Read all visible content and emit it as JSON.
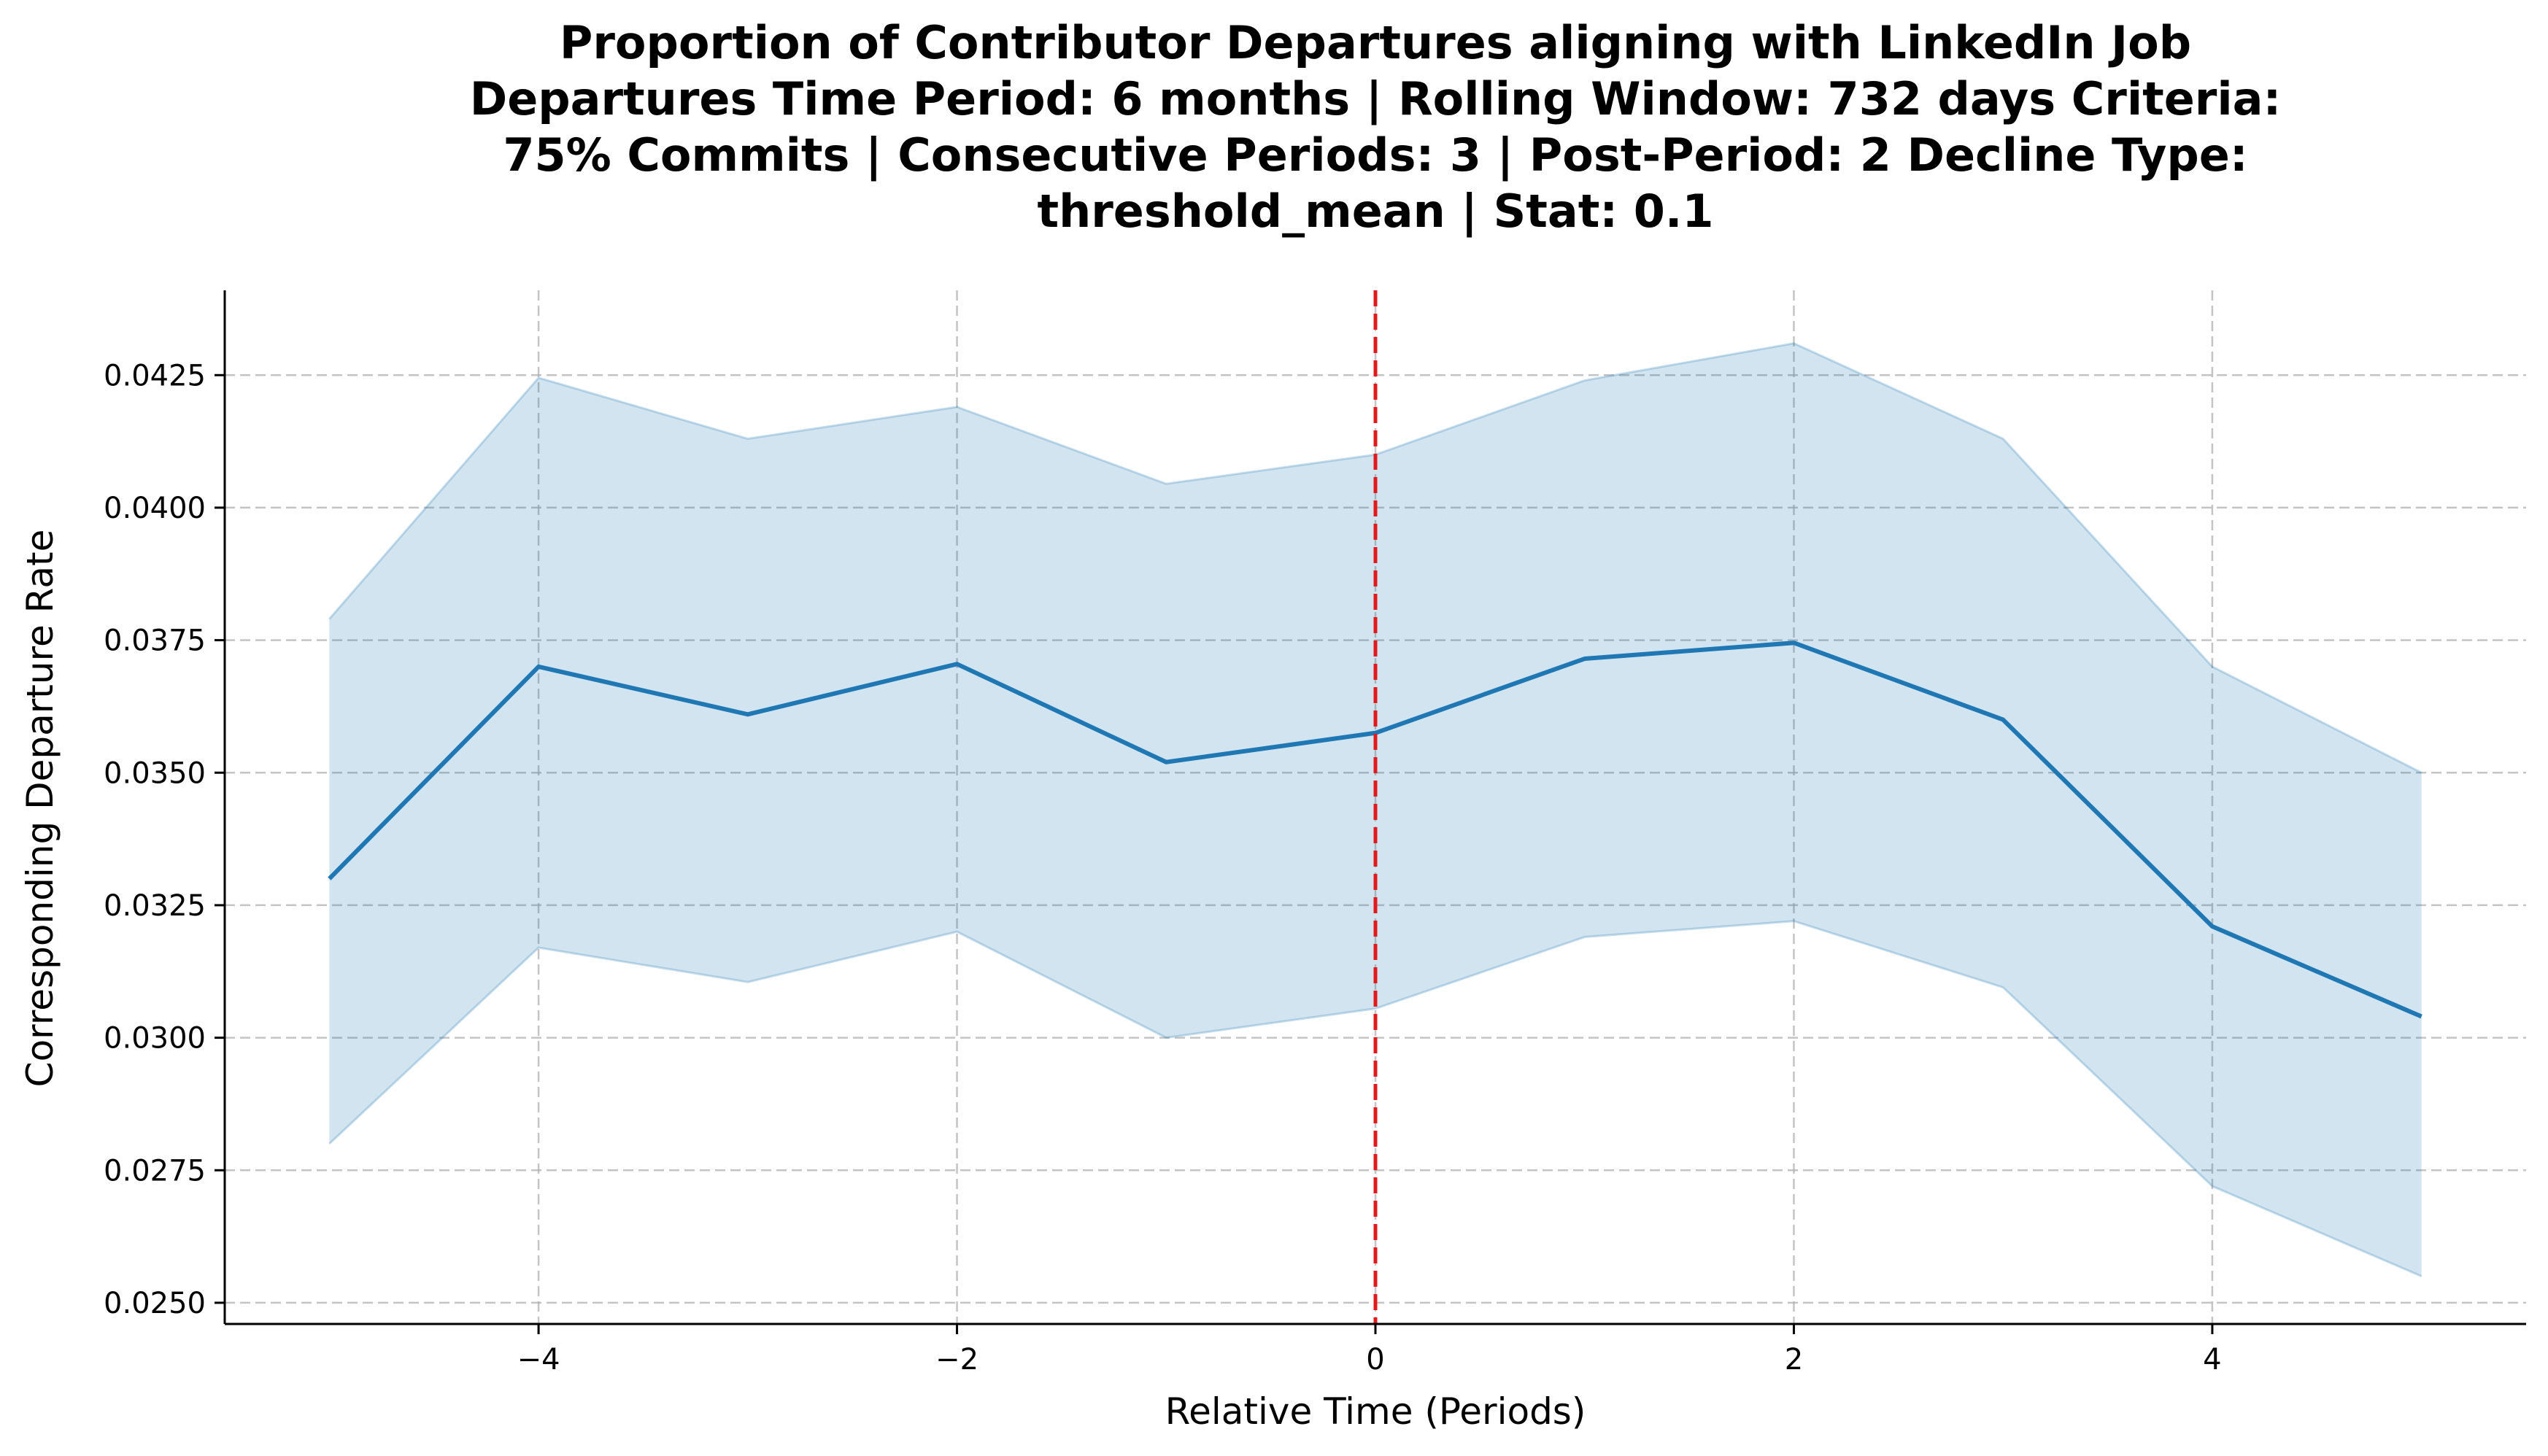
{
  "chart_data": {
    "type": "line",
    "title_lines": [
      "Proportion of Contributor Departures aligning with LinkedIn Job",
      "Departures Time Period: 6 months | Rolling Window: 732 days  Criteria:",
      "75% Commits | Consecutive Periods: 3 | Post-Period: 2 Decline Type:",
      "threshold_mean | Stat: 0.1"
    ],
    "xlabel": "Relative Time (Periods)",
    "ylabel": "Corresponding Departure Rate",
    "xlim": [
      -5.5,
      5.5
    ],
    "ylim": [
      0.0246,
      0.0441
    ],
    "x_ticks": [
      -4,
      -2,
      0,
      2,
      4
    ],
    "x_tick_labels": [
      "−4",
      "−2",
      "0",
      "2",
      "4"
    ],
    "y_ticks": [
      0.025,
      0.0275,
      0.03,
      0.0325,
      0.035,
      0.0375,
      0.04,
      0.0425
    ],
    "y_tick_labels": [
      "0.0250",
      "0.0275",
      "0.0300",
      "0.0325",
      "0.0350",
      "0.0375",
      "0.0400",
      "0.0425"
    ],
    "grid": true,
    "x": [
      -5,
      -4,
      -3,
      -2,
      -1,
      0,
      1,
      2,
      3,
      4,
      5
    ],
    "mean": [
      0.033,
      0.037,
      0.0361,
      0.03705,
      0.0352,
      0.03575,
      0.03715,
      0.03745,
      0.036,
      0.0321,
      0.0304
    ],
    "ci_upper": [
      0.0379,
      0.04245,
      0.0413,
      0.0419,
      0.04045,
      0.041,
      0.0424,
      0.0431,
      0.0413,
      0.037,
      0.035
    ],
    "ci_lower": [
      0.028,
      0.0317,
      0.03105,
      0.032,
      0.03,
      0.03055,
      0.0319,
      0.0322,
      0.03095,
      0.0272,
      0.0255
    ],
    "reference_line_x": 0,
    "colors": {
      "line": "#1f77b4",
      "band": "#1f77b4",
      "reference": "#e31a1c"
    }
  }
}
